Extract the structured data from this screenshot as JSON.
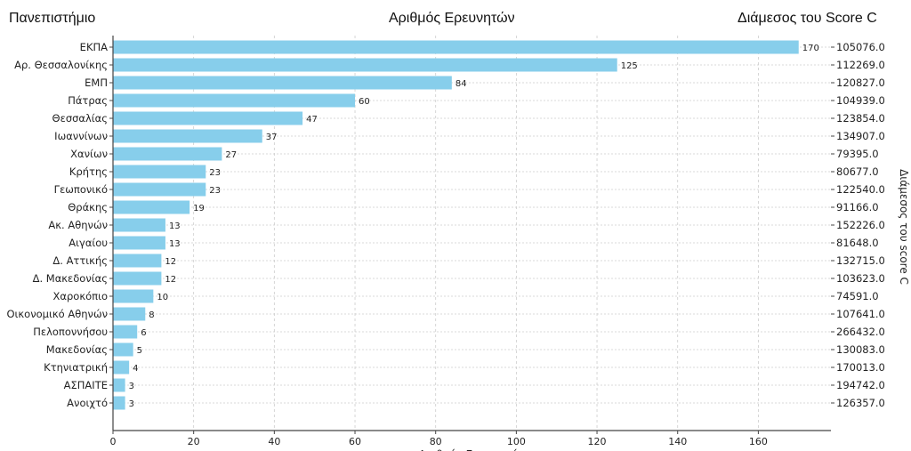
{
  "header": {
    "left": "Πανεπιστήμιο",
    "center": "Αριθμός Ερευνητών",
    "right": "Διάμεσος του Score C"
  },
  "chart_data": {
    "type": "bar",
    "orientation": "horizontal",
    "xlabel": "Αριθμός Ερευνητών",
    "right_ylabel": "Διάμεσος του score C",
    "xlim": [
      0,
      178
    ],
    "xticks": [
      0,
      20,
      40,
      60,
      80,
      100,
      120,
      140,
      160
    ],
    "grid": true,
    "bar_color": "#87CEEB",
    "categories": [
      "ΕΚΠΑ",
      "Αρ. Θεσσαλονίκης",
      "ΕΜΠ",
      "Πάτρας",
      "Θεσσαλίας",
      "Ιωαννίνων",
      "Χανίων",
      "Κρήτης",
      "Γεωπονικό",
      "Θράκης",
      "Ακ. Αθηνών",
      "Αιγαίου",
      "Δ. Αττικής",
      "Δ. Μακεδονίας",
      "Χαροκόπιο",
      "Οικονομικό Αθηνών",
      "Πελοποννήσου",
      "Μακεδονίας",
      "Κτηνιατρική",
      "ΑΣΠΑΙΤΕ",
      "Ανοιχτό"
    ],
    "values": [
      170,
      125,
      84,
      60,
      47,
      37,
      27,
      23,
      23,
      19,
      13,
      13,
      12,
      12,
      10,
      8,
      6,
      5,
      4,
      3,
      3
    ],
    "right_labels": [
      "105076.0",
      "112269.0",
      "120827.0",
      "104939.0",
      "123854.0",
      "134907.0",
      "79395.0",
      "80677.0",
      "122540.0",
      "91166.0",
      "152226.0",
      "81648.0",
      "132715.0",
      "103623.0",
      "74591.0",
      "107641.0",
      "266432.0",
      "130083.0",
      "170013.0",
      "194742.0",
      "126357.0"
    ]
  }
}
